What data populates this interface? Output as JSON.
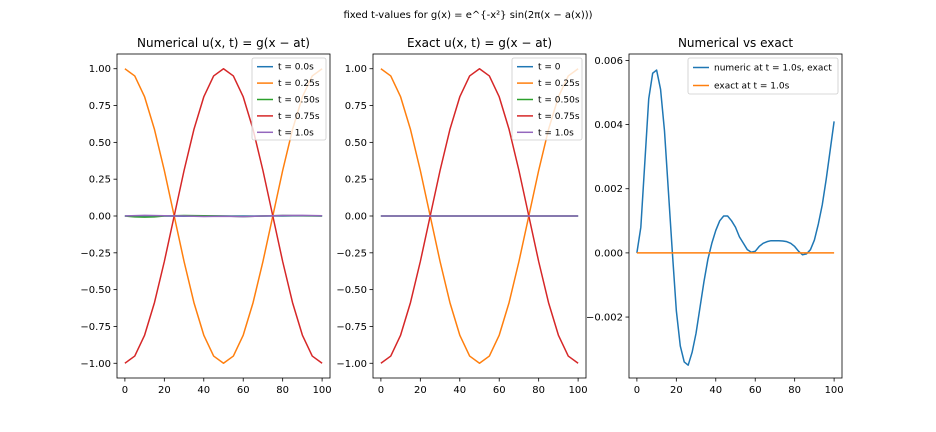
{
  "suptitle": "fixed t-values for  g(x) = e^{-x²} sin(2π(x − a(x)))",
  "colors": {
    "blue": "#1f77b4",
    "orange": "#ff7f0e",
    "green": "#2ca02c",
    "red": "#d62728",
    "purple": "#9467bd"
  },
  "chart_data": [
    {
      "type": "line",
      "title": "Numerical u(x, t) = g(x − at)",
      "xlim": [
        -4,
        104
      ],
      "ylim": [
        -1.1,
        1.1
      ],
      "xticks": [
        0,
        20,
        40,
        60,
        80,
        100
      ],
      "xtick_labels": [
        "0",
        "20",
        "40",
        "60",
        "80",
        "100"
      ],
      "yticks": [
        -1.0,
        -0.75,
        -0.5,
        -0.25,
        0.0,
        0.25,
        0.5,
        0.75,
        1.0
      ],
      "ytick_labels": [
        "−1.00",
        "−0.75",
        "−0.50",
        "−0.25",
        "0.00",
        "0.25",
        "0.50",
        "0.75",
        "1.00"
      ],
      "legend_position": "top-right",
      "series": [
        {
          "name": "t = 0.0s",
          "color": "#1f77b4",
          "x": [
            0,
            10,
            20,
            30,
            40,
            50,
            60,
            70,
            80,
            90,
            100
          ],
          "y": [
            0,
            0.002,
            0,
            -0.002,
            0,
            0,
            0,
            0,
            0,
            0.002,
            0
          ]
        },
        {
          "name": "t = 0.25s",
          "color": "#ff7f0e",
          "x": [
            0,
            5,
            10,
            15,
            20,
            25,
            30,
            35,
            40,
            45,
            50,
            55,
            60,
            65,
            70,
            75,
            80,
            85,
            90,
            95,
            100
          ],
          "y": [
            1.0,
            0.951,
            0.809,
            0.588,
            0.309,
            0,
            -0.309,
            -0.588,
            -0.809,
            -0.951,
            -1.0,
            -0.951,
            -0.809,
            -0.588,
            -0.309,
            0,
            0.309,
            0.588,
            0.809,
            0.951,
            1.0
          ]
        },
        {
          "name": "t = 0.50s",
          "color": "#2ca02c",
          "x": [
            0,
            5,
            10,
            15,
            20,
            30,
            40,
            50,
            60,
            70,
            80,
            90,
            100
          ],
          "y": [
            0,
            -0.006,
            -0.008,
            -0.006,
            0,
            0.003,
            0.002,
            0,
            -0.004,
            0,
            0.003,
            0.002,
            0
          ]
        },
        {
          "name": "t = 0.75s",
          "color": "#d62728",
          "x": [
            0,
            5,
            10,
            15,
            20,
            25,
            30,
            35,
            40,
            45,
            50,
            55,
            60,
            65,
            70,
            75,
            80,
            85,
            90,
            95,
            100
          ],
          "y": [
            -1.0,
            -0.951,
            -0.809,
            -0.588,
            -0.309,
            0,
            0.309,
            0.588,
            0.809,
            0.951,
            1.0,
            0.951,
            0.809,
            0.588,
            0.309,
            0,
            -0.309,
            -0.588,
            -0.809,
            -0.951,
            -1.0
          ]
        },
        {
          "name": "t = 1.0s",
          "color": "#9467bd",
          "x": [
            0,
            10,
            20,
            30,
            40,
            50,
            60,
            70,
            80,
            90,
            100
          ],
          "y": [
            0,
            0.004,
            0.002,
            0,
            -0.003,
            -0.002,
            -0.004,
            0,
            0.003,
            0.004,
            0.002
          ]
        }
      ]
    },
    {
      "type": "line",
      "title": "Exact u(x, t) = g(x − at)",
      "xlim": [
        -4,
        104
      ],
      "ylim": [
        -1.1,
        1.1
      ],
      "xticks": [
        0,
        20,
        40,
        60,
        80,
        100
      ],
      "xtick_labels": [
        "0",
        "20",
        "40",
        "60",
        "80",
        "100"
      ],
      "yticks": [
        -1.0,
        -0.75,
        -0.5,
        -0.25,
        0.0,
        0.25,
        0.5,
        0.75,
        1.0
      ],
      "ytick_labels": [
        "−1.00",
        "−0.75",
        "−0.50",
        "−0.25",
        "0.00",
        "0.25",
        "0.50",
        "0.75",
        "1.00"
      ],
      "legend_position": "top-right",
      "series": [
        {
          "name": "t = 0",
          "color": "#1f77b4",
          "x": [
            0,
            100
          ],
          "y": [
            0,
            0
          ]
        },
        {
          "name": "t = 0.25s",
          "color": "#ff7f0e",
          "x": [
            0,
            5,
            10,
            15,
            20,
            25,
            30,
            35,
            40,
            45,
            50,
            55,
            60,
            65,
            70,
            75,
            80,
            85,
            90,
            95,
            100
          ],
          "y": [
            1.0,
            0.951,
            0.809,
            0.588,
            0.309,
            0,
            -0.309,
            -0.588,
            -0.809,
            -0.951,
            -1.0,
            -0.951,
            -0.809,
            -0.588,
            -0.309,
            0,
            0.309,
            0.588,
            0.809,
            0.951,
            1.0
          ]
        },
        {
          "name": "t = 0.50s",
          "color": "#2ca02c",
          "x": [
            0,
            100
          ],
          "y": [
            0,
            0
          ]
        },
        {
          "name": "t = 0.75s",
          "color": "#d62728",
          "x": [
            0,
            5,
            10,
            15,
            20,
            25,
            30,
            35,
            40,
            45,
            50,
            55,
            60,
            65,
            70,
            75,
            80,
            85,
            90,
            95,
            100
          ],
          "y": [
            -1.0,
            -0.951,
            -0.809,
            -0.588,
            -0.309,
            0,
            0.309,
            0.588,
            0.809,
            0.951,
            1.0,
            0.951,
            0.809,
            0.588,
            0.309,
            0,
            -0.309,
            -0.588,
            -0.809,
            -0.951,
            -1.0
          ]
        },
        {
          "name": "t = 1.0s",
          "color": "#9467bd",
          "x": [
            0,
            100
          ],
          "y": [
            0,
            0
          ]
        }
      ]
    },
    {
      "type": "line",
      "title": "Numerical vs exact",
      "xlim": [
        -4,
        104
      ],
      "ylim": [
        -0.0039,
        0.0062
      ],
      "xticks": [
        0,
        20,
        40,
        60,
        80,
        100
      ],
      "xtick_labels": [
        "0",
        "20",
        "40",
        "60",
        "80",
        "100"
      ],
      "yticks": [
        -0.002,
        0.0,
        0.002,
        0.004,
        0.006
      ],
      "ytick_labels": [
        "−0.002",
        "0.000",
        "0.002",
        "0.004",
        "0.006"
      ],
      "legend_position": "top-right",
      "series": [
        {
          "name": "numeric at t = 1.0s, exact",
          "color": "#1f77b4",
          "x": [
            0,
            2,
            4,
            6,
            8,
            10,
            12,
            14,
            16,
            18,
            20,
            22,
            24,
            26,
            28,
            30,
            32,
            34,
            36,
            38,
            40,
            42,
            44,
            46,
            48,
            50,
            52,
            54,
            56,
            58,
            60,
            62,
            64,
            66,
            68,
            70,
            72,
            74,
            76,
            78,
            80,
            82,
            84,
            86,
            88,
            90,
            92,
            94,
            96,
            98,
            100
          ],
          "y": [
            0,
            0.0008,
            0.0028,
            0.0048,
            0.0056,
            0.0057,
            0.0051,
            0.0038,
            0.0019,
            0.0,
            -0.0018,
            -0.0029,
            -0.0034,
            -0.0035,
            -0.0031,
            -0.0025,
            -0.0017,
            -0.0009,
            -0.0002,
            0.0003,
            0.0007,
            0.001,
            0.00115,
            0.00115,
            0.001,
            0.0008,
            0.0005,
            0.0003,
            0.0001,
            2e-05,
            5e-05,
            0.0002,
            0.0003,
            0.00035,
            0.00038,
            0.00038,
            0.00038,
            0.00037,
            0.00035,
            0.0003,
            0.0002,
            5e-05,
            -6e-05,
            -3e-05,
            0.0001,
            0.0004,
            0.0009,
            0.0015,
            0.0023,
            0.0032,
            0.0041
          ]
        },
        {
          "name": "exact at t = 1.0s",
          "color": "#ff7f0e",
          "x": [
            0,
            100
          ],
          "y": [
            0,
            0
          ]
        }
      ]
    }
  ]
}
